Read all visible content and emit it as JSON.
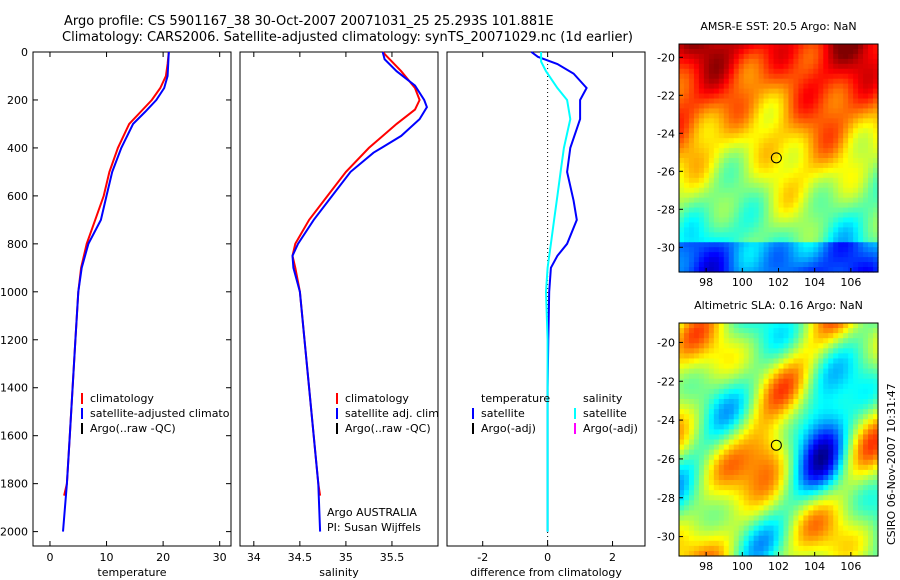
{
  "title": {
    "line1": "Argo profile: CS 5901167_38 30-Oct-2007 20071031_25 25.293S 101.881E",
    "line2": "Climatology: CARS2006. Satellite-adjusted climatology: synTS_20071029.nc (1d earlier)"
  },
  "footer": {
    "credit1": "Argo AUSTRALIA",
    "credit2": "PI: Susan Wijffels",
    "stamp": "CSIRO 06-Nov-2007 10:31:47"
  },
  "colors": {
    "climatology": "#ff0000",
    "satellite": "#0000ff",
    "argo": "#000000",
    "sal_sat": "#00ffff",
    "sal_argo": "#ff00ff"
  },
  "chart_data": [
    {
      "type": "line",
      "xlabel": "temperature",
      "xticks": [
        "0",
        "10",
        "20",
        "30"
      ],
      "xlim": [
        -3,
        32
      ],
      "yticks": [
        "0",
        "200",
        "400",
        "600",
        "800",
        "1000",
        "1200",
        "1400",
        "1600",
        "1800",
        "2000"
      ],
      "ylim": [
        0,
        2060
      ],
      "legend": [
        "climatology",
        "satellite-adjusted climatology",
        "Argo(..raw -QC)"
      ],
      "series": [
        {
          "name": "climatology",
          "color": "#ff0000",
          "points": [
            [
              21.0,
              0
            ],
            [
              20.8,
              50
            ],
            [
              20.5,
              100
            ],
            [
              19.5,
              150
            ],
            [
              18.0,
              200
            ],
            [
              16.0,
              250
            ],
            [
              14.0,
              300
            ],
            [
              12.0,
              400
            ],
            [
              10.5,
              500
            ],
            [
              9.5,
              600
            ],
            [
              8.0,
              700
            ],
            [
              6.5,
              800
            ],
            [
              5.5,
              900
            ],
            [
              5.0,
              1000
            ],
            [
              4.5,
              1200
            ],
            [
              4.0,
              1400
            ],
            [
              3.5,
              1600
            ],
            [
              3.0,
              1800
            ],
            [
              2.5,
              1850
            ]
          ]
        },
        {
          "name": "satellite-adjusted climatology",
          "color": "#0000ff",
          "points": [
            [
              21.0,
              0
            ],
            [
              20.9,
              50
            ],
            [
              20.8,
              100
            ],
            [
              20.2,
              150
            ],
            [
              18.8,
              200
            ],
            [
              16.8,
              250
            ],
            [
              14.7,
              300
            ],
            [
              12.6,
              400
            ],
            [
              11.0,
              500
            ],
            [
              10.0,
              600
            ],
            [
              9.0,
              700
            ],
            [
              6.8,
              800
            ],
            [
              5.6,
              900
            ],
            [
              5.0,
              1000
            ],
            [
              4.5,
              1200
            ],
            [
              4.0,
              1400
            ],
            [
              3.5,
              1600
            ],
            [
              3.0,
              1800
            ],
            [
              2.3,
              2000
            ]
          ]
        }
      ]
    },
    {
      "type": "line",
      "xlabel": "salinity",
      "xticks": [
        "34",
        "34.5",
        "35",
        "35.5"
      ],
      "xlim": [
        33.85,
        36.0
      ],
      "yticks": [],
      "ylim": [
        0,
        2060
      ],
      "legend": [
        "climatology",
        "satellite adj. clim.",
        "Argo(..raw -QC)"
      ],
      "series": [
        {
          "name": "climatology",
          "color": "#ff0000",
          "points": [
            [
              35.4,
              0
            ],
            [
              35.45,
              20
            ],
            [
              35.6,
              80
            ],
            [
              35.75,
              150
            ],
            [
              35.8,
              200
            ],
            [
              35.75,
              240
            ],
            [
              35.55,
              300
            ],
            [
              35.25,
              400
            ],
            [
              35.0,
              500
            ],
            [
              34.8,
              600
            ],
            [
              34.6,
              700
            ],
            [
              34.45,
              800
            ],
            [
              34.42,
              850
            ],
            [
              34.45,
              900
            ],
            [
              34.5,
              1000
            ],
            [
              34.55,
              1200
            ],
            [
              34.6,
              1400
            ],
            [
              34.65,
              1600
            ],
            [
              34.7,
              1800
            ],
            [
              34.72,
              1850
            ]
          ]
        },
        {
          "name": "satellite adj. clim.",
          "color": "#0000ff",
          "points": [
            [
              35.4,
              0
            ],
            [
              35.42,
              30
            ],
            [
              35.55,
              80
            ],
            [
              35.75,
              140
            ],
            [
              35.85,
              200
            ],
            [
              35.88,
              230
            ],
            [
              35.8,
              280
            ],
            [
              35.6,
              350
            ],
            [
              35.3,
              420
            ],
            [
              35.05,
              500
            ],
            [
              34.85,
              600
            ],
            [
              34.65,
              700
            ],
            [
              34.48,
              800
            ],
            [
              34.42,
              850
            ],
            [
              34.43,
              900
            ],
            [
              34.5,
              1000
            ],
            [
              34.55,
              1200
            ],
            [
              34.6,
              1400
            ],
            [
              34.65,
              1600
            ],
            [
              34.7,
              1800
            ],
            [
              34.72,
              2000
            ]
          ]
        }
      ]
    },
    {
      "type": "line",
      "xlabel": "difference from climatology",
      "xticks": [
        "-2",
        "0",
        "2"
      ],
      "xlim": [
        -3.1,
        3.0
      ],
      "yticks": [],
      "ylim": [
        0,
        2060
      ],
      "legend_left": [
        "temperature",
        "satellite",
        "Argo(-adj)"
      ],
      "legend_right": [
        "salinity",
        "satellite",
        "Argo(-adj)"
      ],
      "series": [
        {
          "name": "satellite",
          "color": "#0000ff",
          "points": [
            [
              -0.5,
              0
            ],
            [
              -0.3,
              20
            ],
            [
              0.3,
              50
            ],
            [
              0.8,
              90
            ],
            [
              1.2,
              150
            ],
            [
              1.0,
              200
            ],
            [
              1.0,
              280
            ],
            [
              0.7,
              400
            ],
            [
              0.6,
              500
            ],
            [
              0.8,
              620
            ],
            [
              0.9,
              700
            ],
            [
              0.6,
              800
            ],
            [
              0.3,
              850
            ],
            [
              0.1,
              900
            ],
            [
              0.05,
              1000
            ],
            [
              0.02,
              1200
            ],
            [
              0.0,
              1400
            ],
            [
              0.0,
              2000
            ]
          ]
        },
        {
          "name": "satellite",
          "color": "#00ffff",
          "points": [
            [
              -0.2,
              0
            ],
            [
              -0.2,
              40
            ],
            [
              -0.05,
              80
            ],
            [
              0.3,
              150
            ],
            [
              0.6,
              200
            ],
            [
              0.7,
              280
            ],
            [
              0.5,
              400
            ],
            [
              0.4,
              500
            ],
            [
              0.3,
              600
            ],
            [
              0.2,
              700
            ],
            [
              0.1,
              800
            ],
            [
              0.0,
              900
            ],
            [
              -0.05,
              1000
            ],
            [
              0.0,
              1200
            ],
            [
              0.0,
              1400
            ],
            [
              0.0,
              2000
            ]
          ]
        }
      ]
    }
  ],
  "maps": [
    {
      "title": "AMSR-E SST: 20.5 Argo: NaN",
      "xticks": [
        "98",
        "100",
        "102",
        "104",
        "106"
      ],
      "yticks": [
        "-20",
        "-22",
        "-24",
        "-26",
        "-28",
        "-30"
      ],
      "xlim": [
        96.5,
        107.5
      ],
      "ylim": [
        -31.3,
        -19.3
      ],
      "marker": [
        101.881,
        -25.293
      ]
    },
    {
      "title": "Altimetric SLA: 0.16 Argo: NaN",
      "xticks": [
        "98",
        "100",
        "102",
        "104",
        "106"
      ],
      "yticks": [
        "-20",
        "-22",
        "-24",
        "-26",
        "-28",
        "-30"
      ],
      "xlim": [
        96.5,
        107.5
      ],
      "ylim": [
        -31.0,
        -19.0
      ],
      "marker": [
        101.881,
        -25.293
      ]
    }
  ]
}
